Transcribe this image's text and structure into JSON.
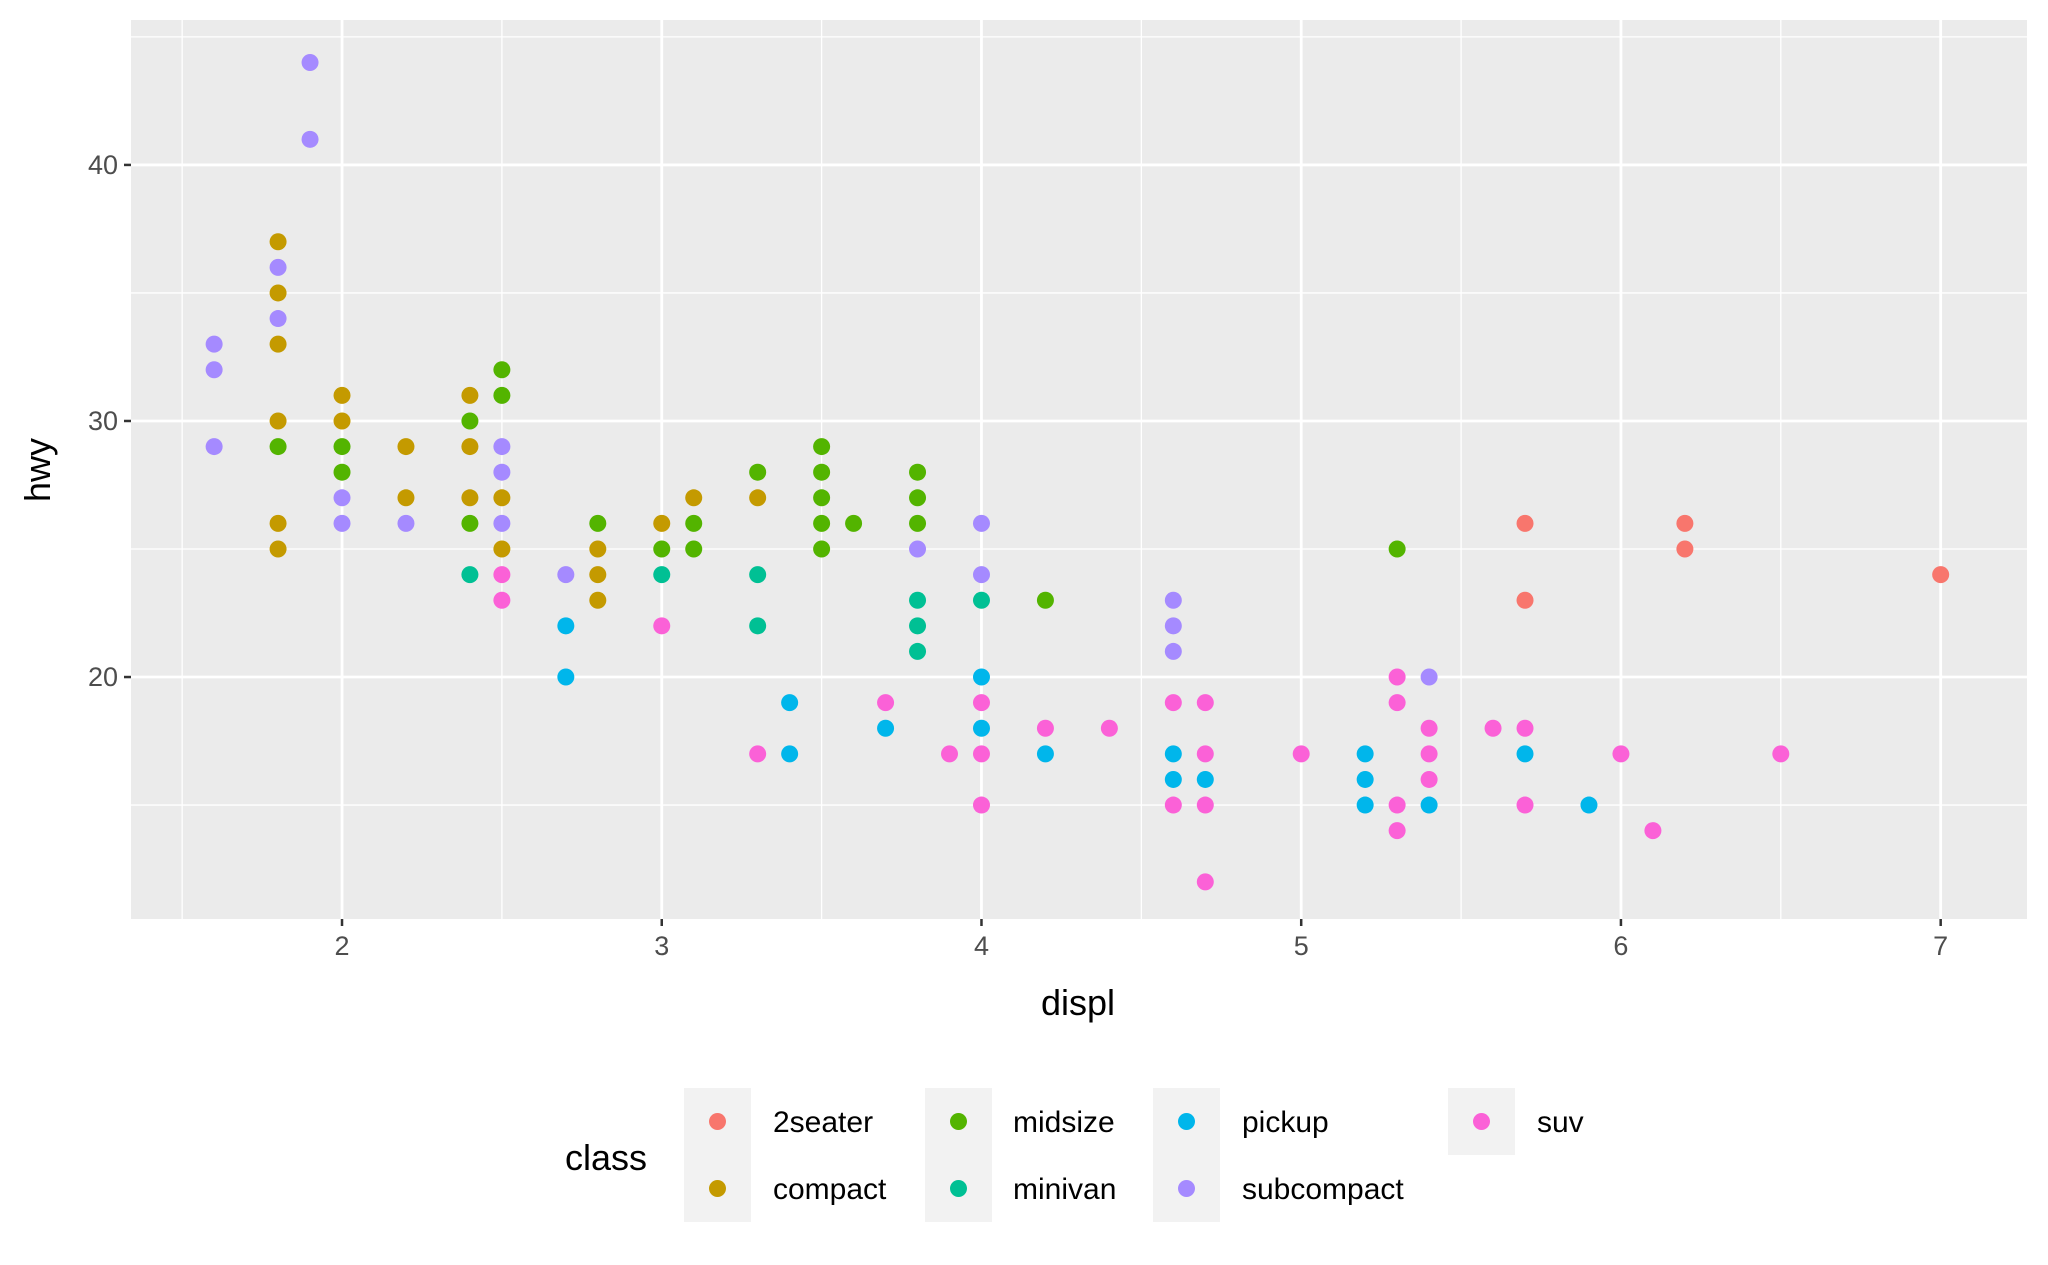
{
  "chart_data": {
    "type": "scatter",
    "title": "",
    "xlabel": "displ",
    "ylabel": "hwy",
    "xlim": [
      1.34,
      7.27
    ],
    "ylim": [
      10.55,
      45.66
    ],
    "x_ticks": [
      2,
      3,
      4,
      5,
      6,
      7
    ],
    "y_ticks": [
      20,
      30,
      40
    ],
    "grid": true,
    "legend": {
      "title": "class",
      "placement": "bottom"
    },
    "series": [
      {
        "name": "2seater",
        "color": "#F8766D",
        "points": [
          [
            5.7,
            26
          ],
          [
            5.7,
            23
          ],
          [
            6.2,
            26
          ],
          [
            6.2,
            25
          ],
          [
            7.0,
            24
          ]
        ]
      },
      {
        "name": "compact",
        "color": "#C49A00",
        "points": [
          [
            1.8,
            37
          ],
          [
            1.8,
            35
          ],
          [
            1.8,
            33
          ],
          [
            1.8,
            30
          ],
          [
            1.8,
            26
          ],
          [
            1.8,
            25
          ],
          [
            2.0,
            31
          ],
          [
            2.0,
            30
          ],
          [
            2.2,
            29
          ],
          [
            2.2,
            27
          ],
          [
            2.4,
            31
          ],
          [
            2.4,
            29
          ],
          [
            2.4,
            27
          ],
          [
            2.5,
            27
          ],
          [
            2.5,
            25
          ],
          [
            2.8,
            25
          ],
          [
            2.8,
            24
          ],
          [
            2.8,
            23
          ],
          [
            3.0,
            26
          ],
          [
            3.1,
            27
          ],
          [
            3.3,
            27
          ]
        ]
      },
      {
        "name": "midsize",
        "color": "#53B400",
        "points": [
          [
            1.8,
            29
          ],
          [
            2.0,
            29
          ],
          [
            2.0,
            28
          ],
          [
            2.4,
            30
          ],
          [
            2.4,
            26
          ],
          [
            2.5,
            32
          ],
          [
            2.5,
            31
          ],
          [
            2.8,
            26
          ],
          [
            3.0,
            25
          ],
          [
            3.1,
            26
          ],
          [
            3.1,
            25
          ],
          [
            3.3,
            28
          ],
          [
            3.5,
            29
          ],
          [
            3.5,
            28
          ],
          [
            3.5,
            27
          ],
          [
            3.5,
            26
          ],
          [
            3.5,
            25
          ],
          [
            3.6,
            26
          ],
          [
            3.8,
            28
          ],
          [
            3.8,
            27
          ],
          [
            3.8,
            26
          ],
          [
            4.2,
            23
          ],
          [
            5.3,
            25
          ]
        ]
      },
      {
        "name": "minivan",
        "color": "#00C094",
        "points": [
          [
            2.4,
            24
          ],
          [
            3.0,
            24
          ],
          [
            3.3,
            24
          ],
          [
            3.3,
            22
          ],
          [
            3.8,
            23
          ],
          [
            3.8,
            22
          ],
          [
            3.8,
            21
          ],
          [
            4.0,
            23
          ]
        ]
      },
      {
        "name": "pickup",
        "color": "#00B6EB",
        "points": [
          [
            2.7,
            22
          ],
          [
            2.7,
            20
          ],
          [
            3.4,
            19
          ],
          [
            3.4,
            17
          ],
          [
            3.7,
            18
          ],
          [
            4.0,
            20
          ],
          [
            4.0,
            18
          ],
          [
            4.2,
            17
          ],
          [
            4.6,
            17
          ],
          [
            4.6,
            16
          ],
          [
            4.7,
            16
          ],
          [
            5.2,
            17
          ],
          [
            5.2,
            16
          ],
          [
            5.2,
            15
          ],
          [
            5.4,
            15
          ],
          [
            5.7,
            17
          ],
          [
            5.9,
            15
          ]
        ]
      },
      {
        "name": "subcompact",
        "color": "#A58AFF",
        "points": [
          [
            1.6,
            33
          ],
          [
            1.6,
            32
          ],
          [
            1.6,
            29
          ],
          [
            1.8,
            36
          ],
          [
            1.8,
            34
          ],
          [
            1.9,
            44
          ],
          [
            1.9,
            41
          ],
          [
            2.0,
            27
          ],
          [
            2.0,
            26
          ],
          [
            2.2,
            26
          ],
          [
            2.5,
            29
          ],
          [
            2.5,
            28
          ],
          [
            2.5,
            26
          ],
          [
            2.7,
            24
          ],
          [
            3.8,
            25
          ],
          [
            4.0,
            26
          ],
          [
            4.0,
            24
          ],
          [
            4.6,
            23
          ],
          [
            4.6,
            22
          ],
          [
            4.6,
            21
          ],
          [
            5.4,
            20
          ]
        ]
      },
      {
        "name": "suv",
        "color": "#FB61D7",
        "points": [
          [
            2.5,
            24
          ],
          [
            2.5,
            23
          ],
          [
            3.0,
            22
          ],
          [
            3.3,
            17
          ],
          [
            3.7,
            19
          ],
          [
            3.9,
            17
          ],
          [
            4.0,
            19
          ],
          [
            4.0,
            17
          ],
          [
            4.0,
            15
          ],
          [
            4.2,
            18
          ],
          [
            4.4,
            18
          ],
          [
            4.6,
            19
          ],
          [
            4.6,
            15
          ],
          [
            4.7,
            19
          ],
          [
            4.7,
            17
          ],
          [
            4.7,
            15
          ],
          [
            4.7,
            12
          ],
          [
            5.0,
            17
          ],
          [
            5.3,
            20
          ],
          [
            5.3,
            19
          ],
          [
            5.3,
            15
          ],
          [
            5.3,
            14
          ],
          [
            5.4,
            18
          ],
          [
            5.4,
            17
          ],
          [
            5.4,
            16
          ],
          [
            5.6,
            18
          ],
          [
            5.7,
            18
          ],
          [
            5.7,
            15
          ],
          [
            6.0,
            17
          ],
          [
            6.1,
            14
          ],
          [
            6.5,
            17
          ]
        ]
      }
    ]
  }
}
